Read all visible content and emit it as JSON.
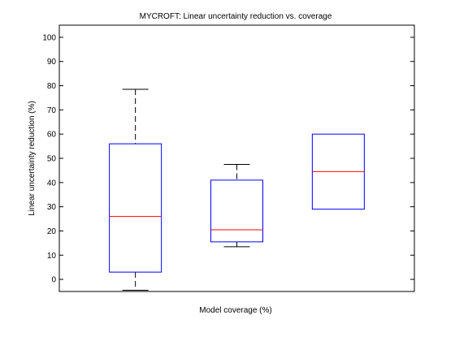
{
  "chart_data": {
    "type": "box",
    "title": "MYCROFT: Linear uncertainty reduction vs. coverage",
    "xlabel": "Model coverage (%)",
    "ylabel": "Linear uncertainty reduction (%)",
    "ylim": [
      -5,
      105
    ],
    "yticks": [
      0,
      10,
      20,
      30,
      40,
      50,
      60,
      70,
      80,
      90,
      100
    ],
    "grid": false,
    "series": [
      {
        "whisker_low": -4.5,
        "q1": 3,
        "median": 26,
        "q3": 56,
        "whisker_high": 78.5
      },
      {
        "whisker_low": 13.5,
        "q1": 15.5,
        "median": 20.5,
        "q3": 41,
        "whisker_high": 47.5
      },
      {
        "whisker_low": 29,
        "q1": 29,
        "median": 44.5,
        "q3": 60,
        "whisker_high": 60
      }
    ],
    "colors": {
      "box": "#0000ff",
      "median": "#ff0000",
      "whisker": "#000000",
      "axes": "#000000"
    }
  }
}
